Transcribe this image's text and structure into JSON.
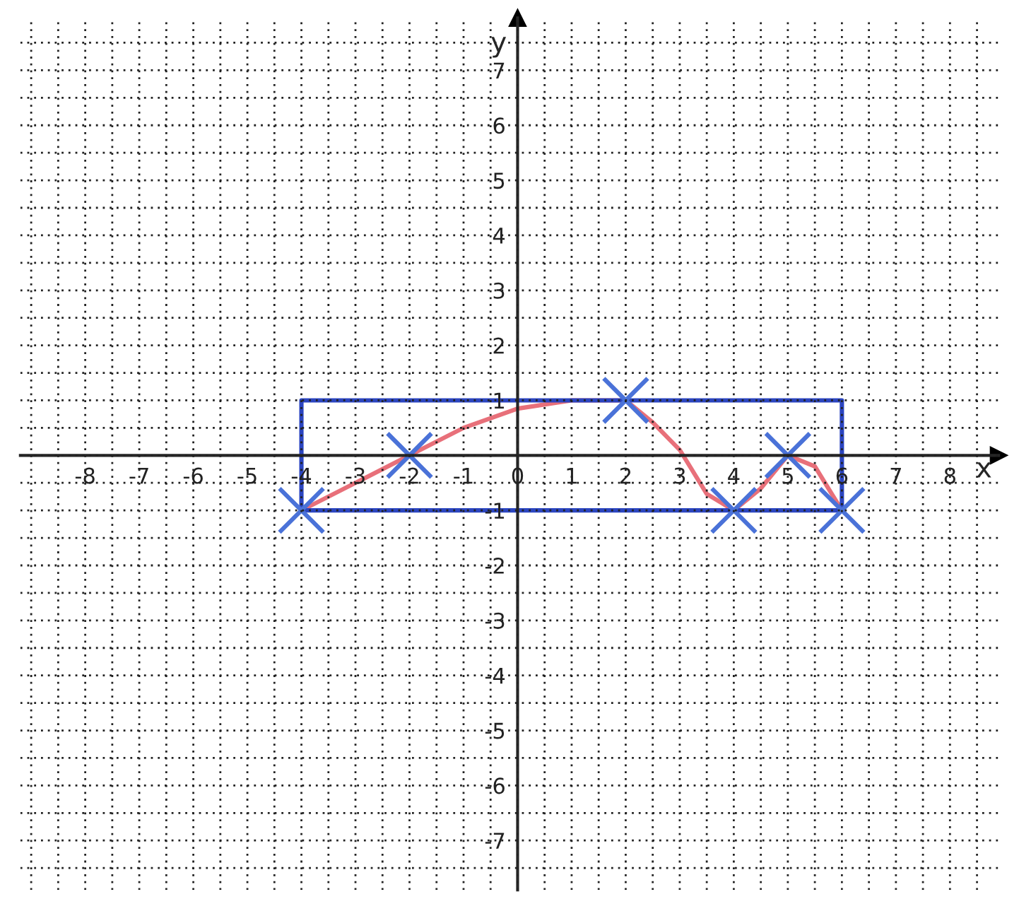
{
  "chart_data": {
    "type": "line",
    "xlabel": "x",
    "ylabel": "y",
    "xlim": [
      -9.2,
      8.9
    ],
    "ylim": [
      -7.9,
      7.95
    ],
    "xticks": [
      {
        "value": -9,
        "label": null
      },
      {
        "value": -8.5,
        "label": null
      },
      -8,
      {
        "value": -7.5,
        "label": null
      },
      -7,
      {
        "value": -6.5,
        "label": null
      },
      -6,
      {
        "value": -5.5,
        "label": null
      },
      -5,
      {
        "value": -4.5,
        "label": null
      },
      -4,
      {
        "value": -3.5,
        "label": null
      },
      -3,
      {
        "value": -2.5,
        "label": null
      },
      -2,
      {
        "value": -1.5,
        "label": null
      },
      -1,
      {
        "value": -0.5,
        "label": null
      },
      0,
      {
        "value": 0.5,
        "label": null
      },
      1,
      {
        "value": 1.5,
        "label": null
      },
      2,
      {
        "value": 2.5,
        "label": null
      },
      3,
      {
        "value": 3.5,
        "label": null
      },
      4,
      {
        "value": 4.5,
        "label": null
      },
      5,
      {
        "value": 5.5,
        "label": null
      },
      6,
      {
        "value": 6.5,
        "label": null
      },
      7,
      {
        "value": 7.5,
        "label": null
      },
      8,
      {
        "value": 8.5,
        "label": null
      }
    ],
    "yticks": [
      {
        "value": -7.5,
        "label": null
      },
      -7,
      {
        "value": -6.5,
        "label": null
      },
      -6,
      {
        "value": -5.5,
        "label": null
      },
      -5,
      {
        "value": -4.5,
        "label": null
      },
      -4,
      {
        "value": -3.5,
        "label": null
      },
      -3,
      {
        "value": -2.5,
        "label": null
      },
      -2,
      {
        "value": -1.5,
        "label": null
      },
      -1,
      {
        "value": -0.5,
        "label": null
      },
      {
        "value": 0,
        "label": null
      },
      {
        "value": 0.5,
        "label": null
      },
      1,
      {
        "value": 1.5,
        "label": null
      },
      2,
      {
        "value": 2.5,
        "label": null
      },
      3,
      {
        "value": 3.5,
        "label": null
      },
      4,
      {
        "value": 4.5,
        "label": null
      },
      5,
      {
        "value": 5.5,
        "label": null
      },
      6,
      {
        "value": 6.5,
        "label": null
      },
      7,
      {
        "value": 7.5,
        "label": null
      }
    ],
    "grid": true,
    "line_style": "solid",
    "series": [
      {
        "color": "#e8707a",
        "x": [
          -4,
          -2,
          -1,
          0,
          1,
          2,
          2.5,
          3,
          3.5,
          4,
          4.5,
          5,
          5.5,
          6
        ],
        "values": [
          -1,
          0,
          0.5,
          0.85,
          1,
          1,
          0.6,
          0.1,
          -0.7,
          -1,
          -0.6,
          0,
          -0.2,
          -1
        ]
      },
      {
        "type": "line",
        "color": "#2b45c0",
        "x": [
          -4,
          -4,
          6,
          6
        ],
        "values": [
          -1,
          1,
          1,
          -1
        ]
      },
      {
        "type": "line",
        "color": "#2b45c0",
        "x": [
          -4,
          6
        ],
        "values": [
          -1,
          -1
        ]
      },
      {
        "type": "scatter",
        "marker": "cross",
        "color": "#4a72d8",
        "x": [
          -4,
          -2,
          2,
          4,
          5,
          6
        ],
        "values": [
          -1,
          0,
          1,
          -1,
          0,
          -1
        ]
      }
    ]
  }
}
